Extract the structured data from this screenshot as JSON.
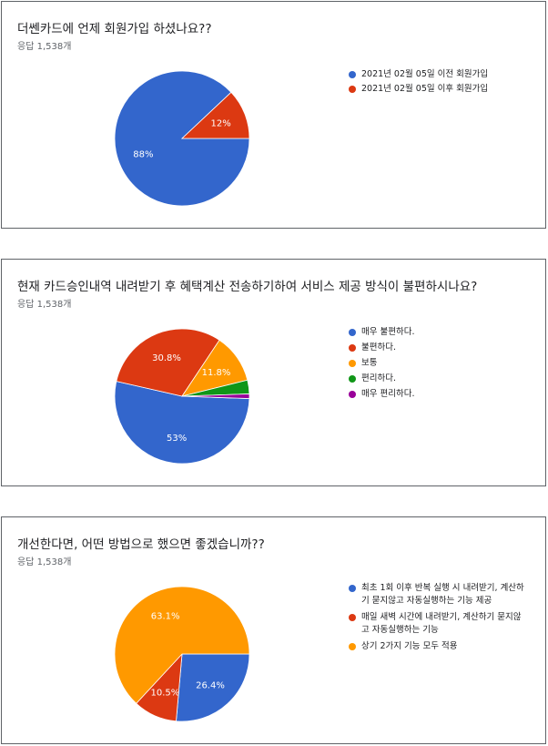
{
  "chart_data": [
    {
      "type": "pie",
      "title": "더쎈카드에 언제 회원가입 하셨나요??",
      "subtitle": "응답 1,538개",
      "categories": [
        "2021년 02월 05일 이전 회원가입",
        "2021년 02월 05일 이후 회원가입"
      ],
      "values": [
        88,
        12
      ],
      "value_labels": [
        "88%",
        "12%"
      ],
      "colors": [
        "#3366cc",
        "#dc3912"
      ],
      "legend_position": "right"
    },
    {
      "type": "pie",
      "title": "현재 카드승인내역 내려받기 후 혜택계산 전송하기하여 서비스 제공 방식이 불편하시나요?",
      "subtitle": "응답 1,538개",
      "categories": [
        "매우 불편하다.",
        "불편하다.",
        "보통",
        "편리하다.",
        "매우 편리하다."
      ],
      "values": [
        53,
        30.8,
        11.8,
        3.3,
        1.1
      ],
      "value_labels": [
        "53%",
        "30.8%",
        "11.8%",
        "",
        ""
      ],
      "colors": [
        "#3366cc",
        "#dc3912",
        "#ff9900",
        "#109618",
        "#990099"
      ],
      "legend_position": "right"
    },
    {
      "type": "pie",
      "title": "개선한다면, 어떤 방법으로 했으면 좋겠습니까??",
      "subtitle": "응답 1,538개",
      "categories": [
        "최초 1회 이후 반복 실행 시 내려받기, 계산하기 묻지않고 자동실행하는 기능 제공",
        "매일 새벽 시간에 내려받기, 계산하기 묻지않고 자동실행하는 기능",
        "상기 2가지 기능 모두 적용"
      ],
      "values": [
        26.4,
        10.5,
        63.1
      ],
      "value_labels": [
        "26.4%",
        "10.5%",
        "63.1%"
      ],
      "colors": [
        "#3366cc",
        "#dc3912",
        "#ff9900"
      ],
      "legend_position": "right"
    }
  ]
}
